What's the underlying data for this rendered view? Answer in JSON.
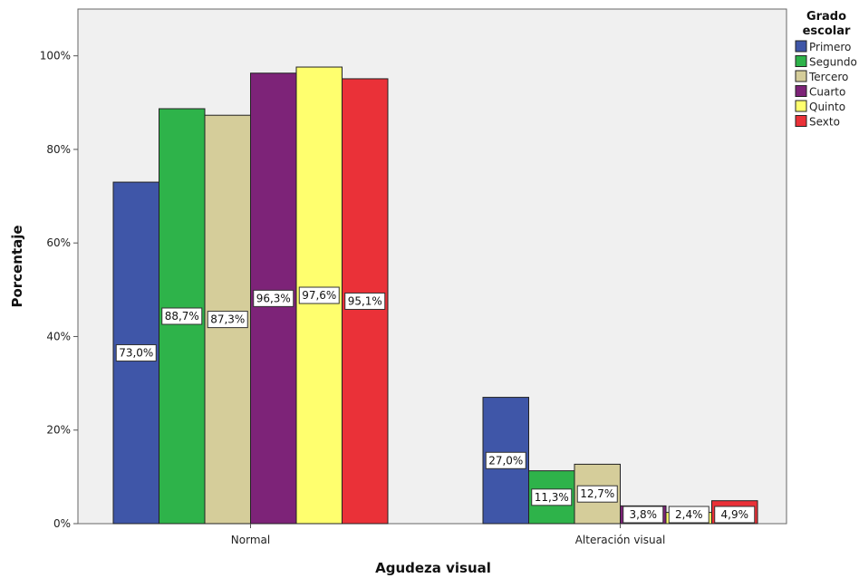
{
  "chart_data": {
    "type": "bar",
    "xlabel": "Agudeza visual",
    "ylabel": "Porcentaje",
    "ylim": [
      0,
      110
    ],
    "yticks": [
      0,
      20,
      40,
      60,
      80,
      100
    ],
    "ytick_labels": [
      "0%",
      "20%",
      "40%",
      "60%",
      "80%",
      "100%"
    ],
    "categories": [
      "Normal",
      "Alteración visual"
    ],
    "legend": {
      "title_lines": [
        "Grado",
        "escolar"
      ],
      "placement": "right"
    },
    "series": [
      {
        "name": "Primero",
        "color": "#3f56a8",
        "values": [
          73.0,
          27.0
        ],
        "labels": [
          "73,0%",
          "27,0%"
        ]
      },
      {
        "name": "Segundo",
        "color": "#2eb34a",
        "values": [
          88.7,
          11.3
        ],
        "labels": [
          "88,7%",
          "11,3%"
        ]
      },
      {
        "name": "Tercero",
        "color": "#d5cd9a",
        "values": [
          87.3,
          12.7
        ],
        "labels": [
          "87,3%",
          "12,7%"
        ]
      },
      {
        "name": "Cuarto",
        "color": "#7d2378",
        "values": [
          96.3,
          3.8
        ],
        "labels": [
          "96,3%",
          "3,8%"
        ]
      },
      {
        "name": "Quinto",
        "color": "#ffff6e",
        "values": [
          97.6,
          2.4
        ],
        "labels": [
          "97,6%",
          "2,4%"
        ]
      },
      {
        "name": "Sexto",
        "color": "#ea3138",
        "values": [
          95.1,
          4.9
        ],
        "labels": [
          "95,1%",
          "4,9%"
        ]
      }
    ]
  }
}
